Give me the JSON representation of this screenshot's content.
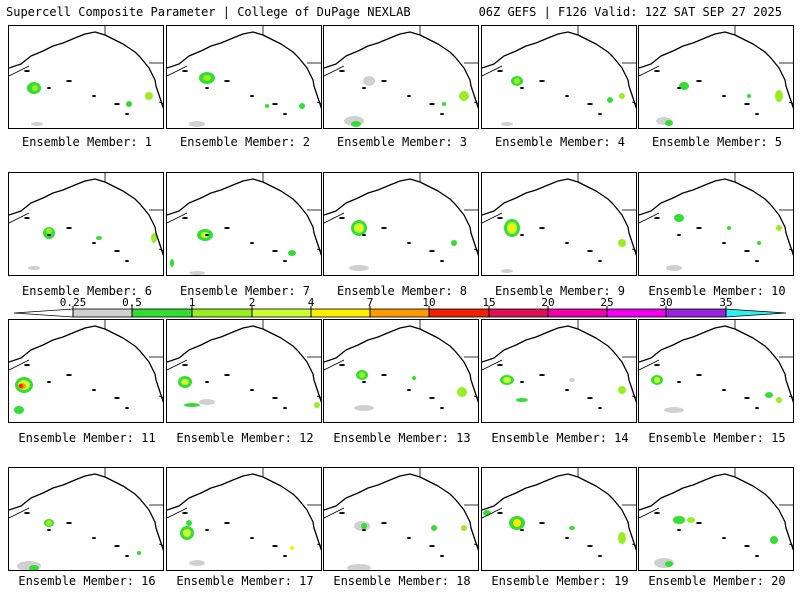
{
  "header": {
    "left": "Supercell Composite Parameter | College of DuPage NEXLAB",
    "right": "06Z GEFS | F126 Valid: 12Z SAT SEP 27 2025"
  },
  "colorbar": {
    "labels": [
      "0.25",
      "0.5",
      "1",
      "2",
      "4",
      "7",
      "10",
      "15",
      "20",
      "25",
      "30",
      "35"
    ],
    "colors": [
      "#d0d0d0",
      "#33dd33",
      "#99ee22",
      "#ccff33",
      "#ffee00",
      "#ff9900",
      "#ee2200",
      "#dd1155",
      "#ee00aa",
      "#ee00ee",
      "#9922dd",
      "#aa66dd",
      "#33eeee"
    ]
  },
  "members": [
    {
      "caption": "Ensemble Member: 1"
    },
    {
      "caption": "Ensemble Member: 2"
    },
    {
      "caption": "Ensemble Member: 3"
    },
    {
      "caption": "Ensemble Member: 4"
    },
    {
      "caption": "Ensemble Member: 5"
    },
    {
      "caption": "Ensemble Member: 6"
    },
    {
      "caption": "Ensemble Member: 7"
    },
    {
      "caption": "Ensemble Member: 8"
    },
    {
      "caption": "Ensemble Member: 9"
    },
    {
      "caption": "Ensemble Member: 10"
    },
    {
      "caption": "Ensemble Member: 11"
    },
    {
      "caption": "Ensemble Member: 12"
    },
    {
      "caption": "Ensemble Member: 13"
    },
    {
      "caption": "Ensemble Member: 14"
    },
    {
      "caption": "Ensemble Member: 15"
    },
    {
      "caption": "Ensemble Member: 16"
    },
    {
      "caption": "Ensemble Member: 17"
    },
    {
      "caption": "Ensemble Member: 18"
    },
    {
      "caption": "Ensemble Member: 19"
    },
    {
      "caption": "Ensemble Member: 20"
    }
  ]
}
